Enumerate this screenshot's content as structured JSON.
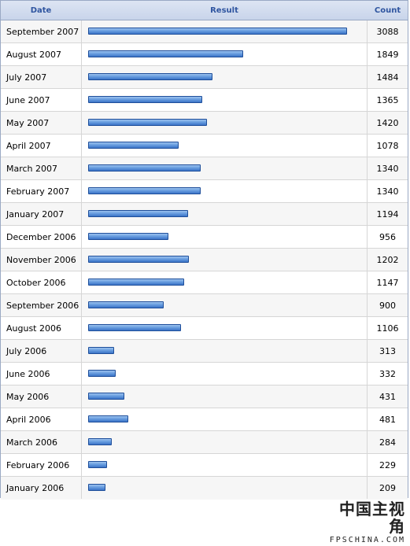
{
  "header": {
    "date": "Date",
    "result": "Result",
    "count": "Count"
  },
  "chart_data": {
    "type": "bar",
    "orientation": "horizontal",
    "categories": [
      "September 2007",
      "August 2007",
      "July 2007",
      "June 2007",
      "May 2007",
      "April 2007",
      "March 2007",
      "February 2007",
      "January 2007",
      "December 2006",
      "November 2006",
      "October 2006",
      "September 2006",
      "August 2006",
      "July 2006",
      "June 2006",
      "May 2006",
      "April 2006",
      "March 2006",
      "February 2006",
      "January 2006"
    ],
    "values": [
      3088,
      1849,
      1484,
      1365,
      1420,
      1078,
      1340,
      1340,
      1194,
      956,
      1202,
      1147,
      900,
      1106,
      313,
      332,
      431,
      481,
      284,
      229,
      209
    ],
    "bar_color": "#4a86d6"
  },
  "watermark": {
    "cn": "中国主视角",
    "en": "FPSCHINA.COM"
  }
}
